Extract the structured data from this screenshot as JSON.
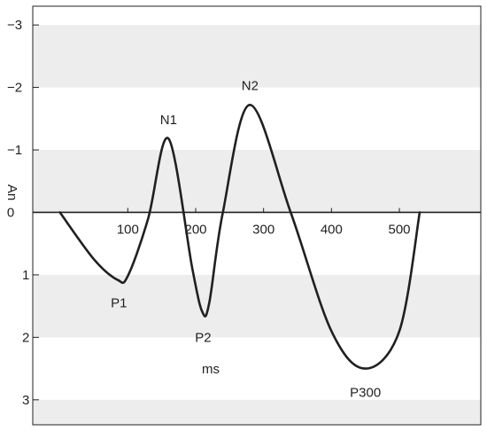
{
  "chart_data": {
    "type": "line",
    "xlabel": "ms",
    "ylabel": "An",
    "xlim": [
      -40,
      620
    ],
    "ylim": [
      -3.3,
      3.4
    ],
    "y_inverted": true,
    "grid": "alternating horizontal bands",
    "x_ticks": [
      100,
      200,
      300,
      400,
      500
    ],
    "y_ticks": [
      -3,
      -2,
      -1,
      0,
      1,
      2,
      3
    ],
    "x_tick_labels": [
      "100",
      "200",
      "300",
      "400",
      "500"
    ],
    "y_tick_labels": [
      "−3",
      "−2",
      "−1",
      "0",
      "1",
      "2",
      "3"
    ],
    "series": [
      {
        "x": [
          0,
          50,
          85,
          100,
          130,
          160,
          195,
          210,
          220,
          240,
          280,
          340,
          400,
          450,
          500,
          530
        ],
        "y": [
          0,
          0.75,
          1.08,
          1.02,
          0.1,
          -1.18,
          0.9,
          1.6,
          1.45,
          0,
          -1.72,
          0,
          1.9,
          2.5,
          1.9,
          0
        ]
      }
    ],
    "annotations": [
      {
        "text": "P1",
        "x": 87,
        "y": 1.45
      },
      {
        "text": "N1",
        "x": 160,
        "y": -1.48
      },
      {
        "text": "P2",
        "x": 211,
        "y": 2.0
      },
      {
        "text": "N2",
        "x": 280,
        "y": -2.03
      },
      {
        "text": "P300",
        "x": 450,
        "y": 2.88
      }
    ],
    "colors": {
      "line": "#231f20",
      "band": "#ededed",
      "axis": "#231f20"
    }
  }
}
